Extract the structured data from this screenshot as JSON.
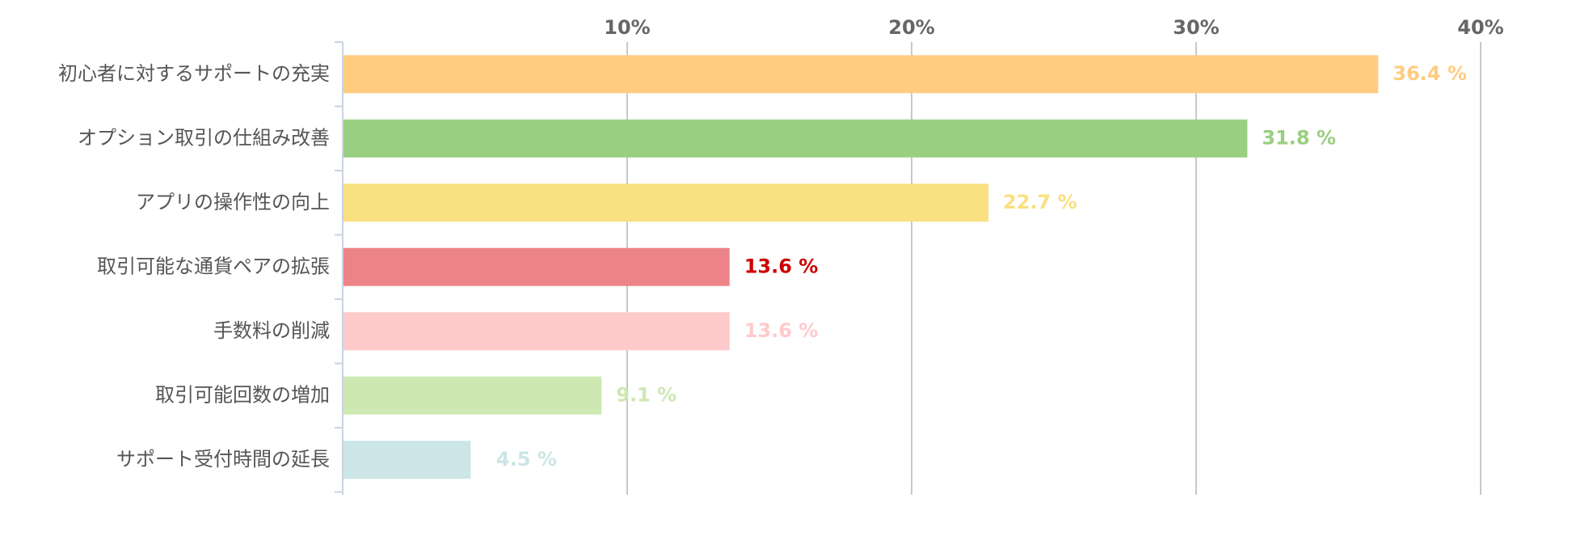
{
  "chart_data": {
    "type": "bar",
    "orientation": "horizontal",
    "title": "",
    "xlabel": "",
    "ylabel": "",
    "categories": [
      "初心者に対するサポートの充実",
      "オプション取引の仕組み改善",
      "アプリの操作性の向上",
      "取引可能な通貨ペアの拡張",
      "手数料の削減",
      "取引可能回数の増加",
      "サポート受付時間の延長"
    ],
    "values": [
      36.4,
      31.8,
      22.7,
      13.6,
      13.6,
      9.1,
      4.5
    ],
    "value_labels": [
      "36.4 %",
      "31.8 %",
      "22.7 %",
      "13.6 %",
      "13.6 %",
      "9.1 %",
      "4.5 %"
    ],
    "bar_colors": [
      "#FFCC80",
      "#99CF80",
      "#F9E080",
      "#EC8388",
      "#FFCACB",
      "#CDE8B3",
      "#CCE5E6"
    ],
    "label_colors": [
      "#FFCC80",
      "#99CF80",
      "#F9E080",
      "#CC0000",
      "#FFCACB",
      "#CDE8B3",
      "#CCE5E6"
    ],
    "xlim": [
      0,
      40
    ],
    "x_ticks": [
      10,
      20,
      30,
      40
    ],
    "x_tick_labels": [
      "10%",
      "20%",
      "30%",
      "40%"
    ],
    "x_axis_position": "top",
    "grid": true
  }
}
